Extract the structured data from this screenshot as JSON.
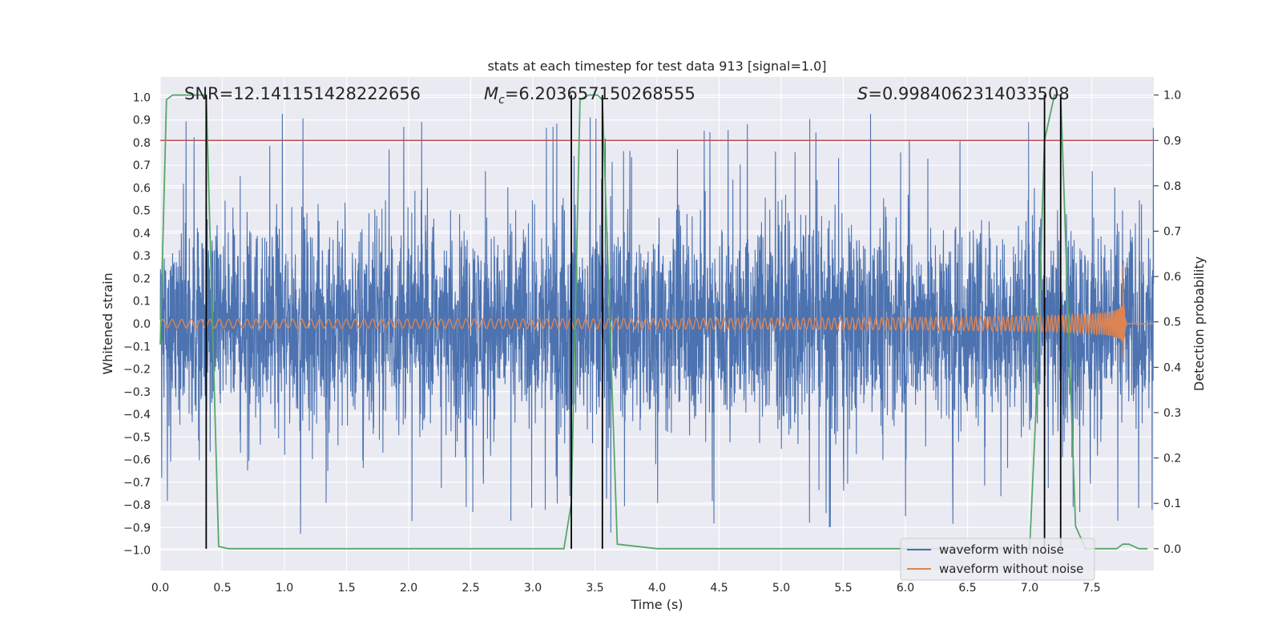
{
  "chart_data": {
    "type": "line",
    "title": "stats at each timestep for test data 913 [signal=1.0]",
    "xlabel": "Time (s)",
    "ylabel": "Whitened strain",
    "y2label": "Detection probability",
    "xlim": [
      0.0,
      8.0
    ],
    "ylim": [
      -1.09,
      1.09
    ],
    "y2lim": [
      -0.048,
      1.04
    ],
    "xticks": [
      "0.0",
      "0.5",
      "1.0",
      "1.5",
      "2.0",
      "2.5",
      "3.0",
      "3.5",
      "4.0",
      "4.5",
      "5.0",
      "5.5",
      "6.0",
      "6.5",
      "7.0",
      "7.5"
    ],
    "yticks": [
      "−1.0",
      "−0.9",
      "−0.8",
      "−0.7",
      "−0.6",
      "−0.5",
      "−0.4",
      "−0.3",
      "−0.2",
      "−0.1",
      "0.0",
      "0.1",
      "0.2",
      "0.3",
      "0.4",
      "0.5",
      "0.6",
      "0.7",
      "0.8",
      "0.9",
      "1.0"
    ],
    "y2ticks": [
      "0.0",
      "0.1",
      "0.2",
      "0.3",
      "0.4",
      "0.5",
      "0.6",
      "0.7",
      "0.8",
      "0.9",
      "1.0"
    ],
    "grid": true,
    "legend_position": "bottom-right",
    "annotations": {
      "snr": "SNR=12.141151428222656",
      "mc_symbol": "M",
      "mc_sub": "c",
      "mc_value": "=6.203657150268555",
      "s_symbol": "S",
      "s_value": "=0.9984062314033508"
    },
    "threshold": {
      "y2": 0.9,
      "color": "#c44e52"
    },
    "vertical_lines_x": [
      0.37,
      3.31,
      3.56,
      7.12,
      7.25
    ],
    "series": [
      {
        "name": "waveform with noise",
        "color": "#4c72b0",
        "kind": "noise",
        "typical_amplitude": 0.25,
        "peak_amplitude": 0.93
      },
      {
        "name": "waveform without noise",
        "color": "#dd8452",
        "kind": "chirp",
        "start_amplitude": 0.02,
        "peak_amplitude": 0.33,
        "merger_time": 7.75
      },
      {
        "name": "",
        "color": "#55a868",
        "axis": "right",
        "x": [
          0.0,
          0.05,
          0.1,
          0.2,
          0.3,
          0.37,
          0.42,
          0.47,
          0.55,
          1.0,
          2.0,
          3.0,
          3.25,
          3.31,
          3.38,
          3.45,
          3.52,
          3.56,
          3.62,
          3.68,
          4.0,
          5.0,
          6.0,
          7.0,
          7.05,
          7.12,
          7.2,
          7.25,
          7.3,
          7.37,
          7.45,
          7.7,
          7.75,
          7.8,
          7.88,
          7.95
        ],
        "values": [
          0.45,
          0.99,
          1.0,
          1.0,
          1.0,
          1.0,
          0.5,
          0.005,
          0.0,
          0.0,
          0.0,
          0.0,
          0.0,
          0.1,
          0.99,
          1.0,
          1.0,
          0.99,
          0.5,
          0.01,
          0.0,
          0.0,
          0.0,
          0.0,
          0.3,
          0.9,
          1.0,
          1.0,
          0.6,
          0.05,
          0.0,
          0.0,
          0.01,
          0.01,
          0.0,
          0.0
        ]
      }
    ]
  }
}
